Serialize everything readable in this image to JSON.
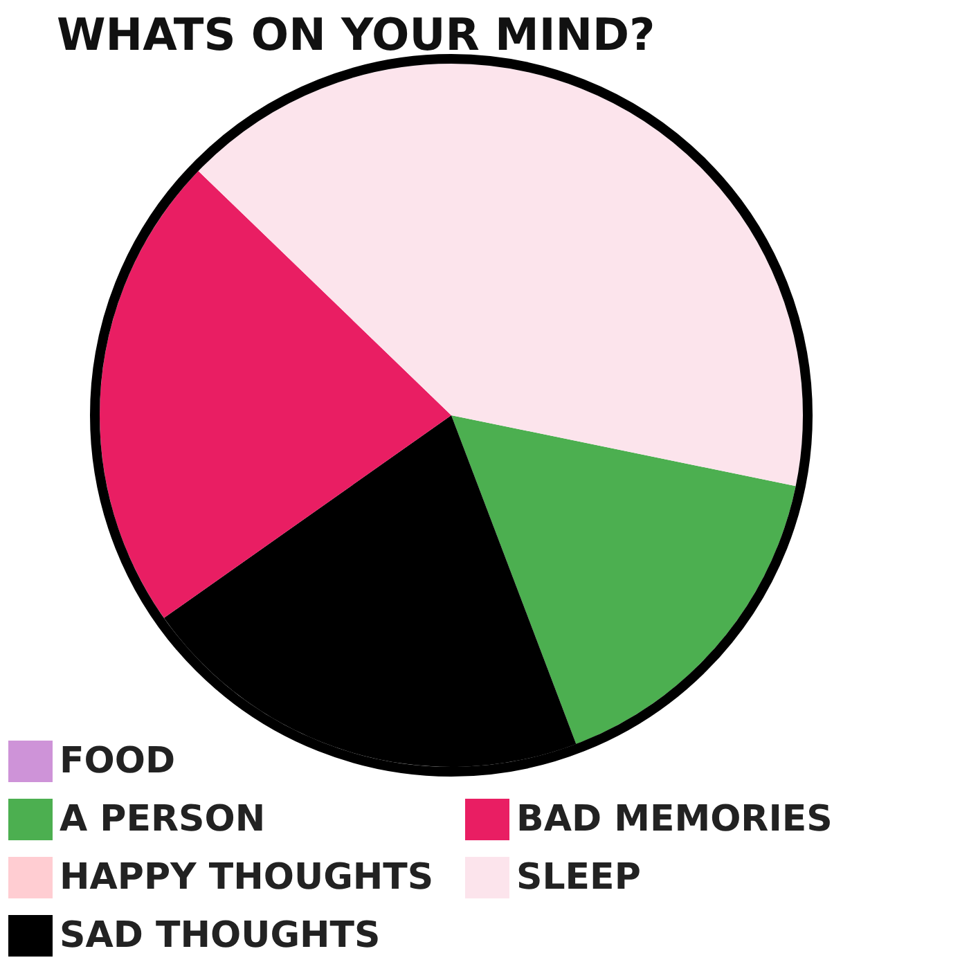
{
  "chart_data": {
    "type": "pie",
    "title": "WHATS ON YOUR MIND?",
    "categories": [
      "FOOD",
      "A PERSON",
      "HAPPY THOUGHTS",
      "SAD THOUGHTS",
      "BAD MEMORIES",
      "SLEEP"
    ],
    "values": [
      0,
      16,
      0,
      21,
      22,
      41
    ],
    "colors": [
      "#ce93d8",
      "#4caf50",
      "#ffcdd2",
      "#000000",
      "#e91e63",
      "#fce4ec"
    ],
    "legend": "bottom left"
  }
}
